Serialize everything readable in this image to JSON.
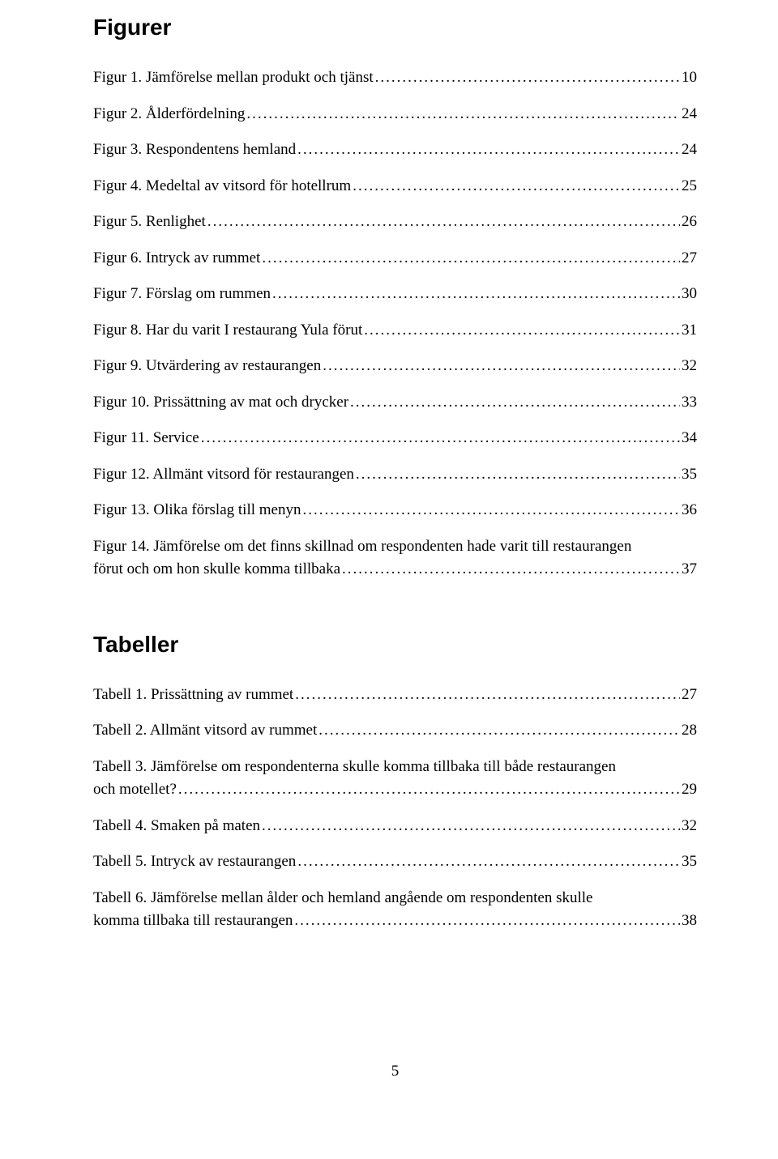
{
  "headings": {
    "figurer": "Figurer",
    "tabeller": "Tabeller"
  },
  "leader_dots": "...............................................................................................................................................................................................................................",
  "figurer": [
    {
      "label": "Figur 1. Jämförelse mellan produkt och tjänst",
      "page": "10"
    },
    {
      "label": "Figur 2. Ålderfördelning",
      "page": "24"
    },
    {
      "label": "Figur 3. Respondentens hemland",
      "page": "24"
    },
    {
      "label": "Figur 4. Medeltal av vitsord för hotellrum",
      "page": "25"
    },
    {
      "label": "Figur 5. Renlighet",
      "page": "26"
    },
    {
      "label": "Figur 6. Intryck av rummet",
      "page": "27"
    },
    {
      "label": "Figur 7. Förslag om rummen",
      "page": "30"
    },
    {
      "label": "Figur 8. Har du varit I restaurang Yula förut",
      "page": "31"
    },
    {
      "label": "Figur 9. Utvärdering av restaurangen",
      "page": "32"
    },
    {
      "label": "Figur 10. Prissättning av mat och drycker",
      "page": "33"
    },
    {
      "label": "Figur 11. Service",
      "page": "34"
    },
    {
      "label": "Figur 12. Allmänt vitsord för restaurangen",
      "page": "35"
    },
    {
      "label": "Figur 13. Olika förslag till menyn",
      "page": "36"
    },
    {
      "label_line1": "Figur 14. Jämförelse om det finns skillnad om respondenten hade varit till restaurangen",
      "label_line2": "förut och om hon skulle komma tillbaka",
      "page": "37",
      "multiline": true
    }
  ],
  "tabeller": [
    {
      "label": "Tabell 1. Prissättning av rummet",
      "page": "27"
    },
    {
      "label": "Tabell 2. Allmänt vitsord av rummet",
      "page": "28"
    },
    {
      "label_line1": "Tabell 3. Jämförelse om respondenterna skulle komma tillbaka till både restaurangen",
      "label_line2": "och motellet?",
      "page": "29",
      "multiline": true
    },
    {
      "label": "Tabell 4. Smaken på maten",
      "page": "32"
    },
    {
      "label": "Tabell 5. Intryck av restaurangen",
      "page": "35"
    },
    {
      "label_line1": "Tabell 6. Jämförelse mellan ålder och hemland angående om respondenten skulle",
      "label_line2": "komma tillbaka till restaurangen",
      "page": "38",
      "multiline": true
    }
  ],
  "page_number": "5"
}
